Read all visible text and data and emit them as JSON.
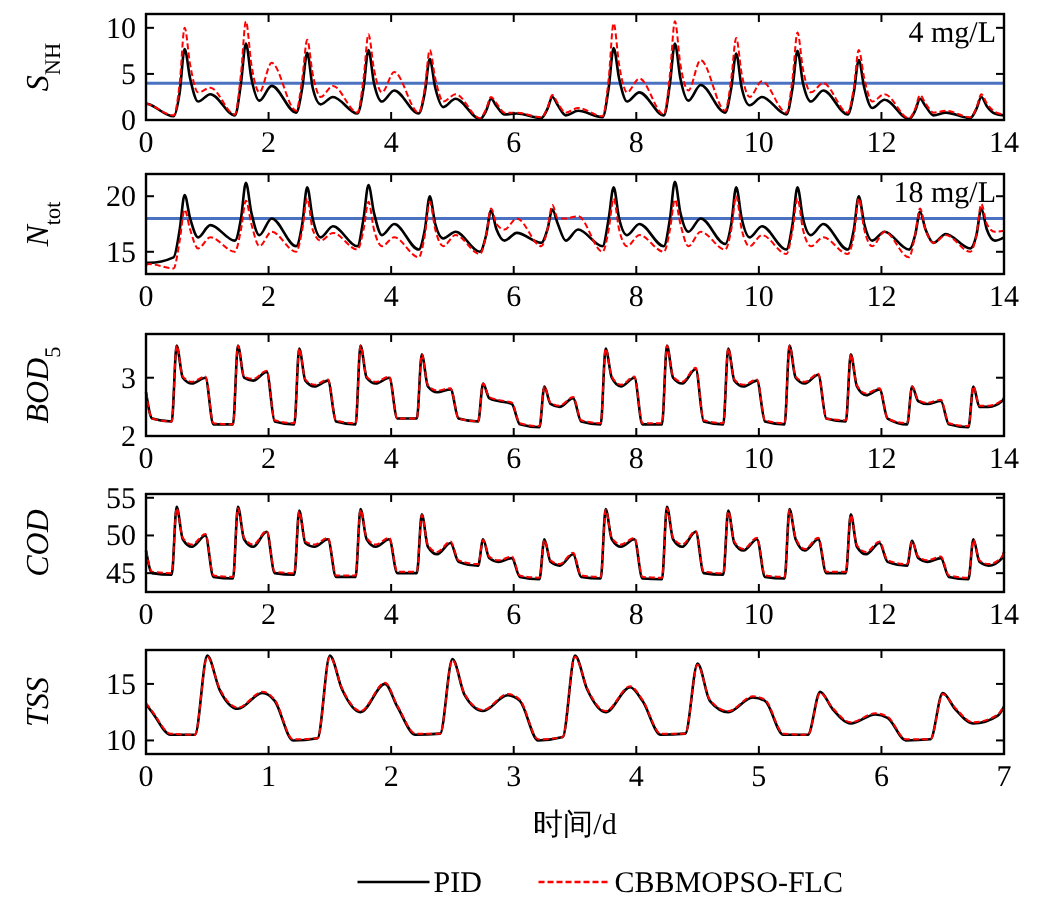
{
  "chart_data": [
    {
      "type": "line",
      "ylabel": "S$_{NH}$",
      "xlim": [
        0,
        14
      ],
      "xticks": [
        0,
        2,
        4,
        6,
        8,
        10,
        12,
        14
      ],
      "ylim": [
        0,
        11.5
      ],
      "yticks": [
        0,
        5,
        10
      ],
      "grid": false,
      "legend": false,
      "marker": "none",
      "x": [
        0,
        0.05,
        0.45,
        0.55,
        0.63,
        0.72,
        0.85,
        1.05,
        1.45,
        1.55,
        1.63,
        1.72,
        1.85,
        2.05,
        2.45,
        2.55,
        2.63,
        2.72,
        2.85,
        3.05,
        3.45,
        3.55,
        3.63,
        3.72,
        3.85,
        4.05,
        4.45,
        4.55,
        4.63,
        4.72,
        4.85,
        5.05,
        5.45,
        5.55,
        5.63,
        5.72,
        5.85,
        6.05,
        6.45,
        6.55,
        6.63,
        6.72,
        6.85,
        7.05,
        7.45,
        7.55,
        7.63,
        7.72,
        7.85,
        8.05,
        8.45,
        8.55,
        8.63,
        8.72,
        8.85,
        9.05,
        9.45,
        9.55,
        9.63,
        9.72,
        9.85,
        10.05,
        10.45,
        10.55,
        10.63,
        10.72,
        10.85,
        11.05,
        11.45,
        11.55,
        11.63,
        11.72,
        11.85,
        12.05,
        12.45,
        12.55,
        12.63,
        12.72,
        12.85,
        13.05,
        13.45,
        13.55,
        13.63,
        13.72,
        13.85,
        14
      ],
      "ref_lines": [
        {
          "axis": "y",
          "value": 4,
          "label": "4 mg/L",
          "color": "#4a72c0"
        }
      ],
      "series": [
        {
          "color": "#000000",
          "line_style": "solid",
          "values": [
            1.8,
            1.7,
            0.4,
            3,
            7.7,
            4.5,
            2.0,
            2.8,
            0.5,
            4,
            8.3,
            4.5,
            2.1,
            3.7,
            0.8,
            3.5,
            7.3,
            3.5,
            1.7,
            2.5,
            0.7,
            3.5,
            7.6,
            4,
            2.0,
            3.2,
            0.7,
            3,
            6.6,
            3.5,
            1.4,
            2.3,
            0.1,
            1.0,
            2.3,
            1.5,
            0.6,
            0.7,
            0.2,
            1.2,
            2.5,
            1.6,
            0.5,
            1.0,
            0.3,
            3.5,
            7.8,
            4.5,
            2.0,
            3.0,
            0.5,
            4,
            8.3,
            4.5,
            2.1,
            3.8,
            0.8,
            3.5,
            7.2,
            3.5,
            1.6,
            2.5,
            0.6,
            3.5,
            7.5,
            4,
            2.0,
            3.2,
            0.6,
            3,
            6.5,
            3.5,
            1.3,
            2.2,
            0.1,
            1.0,
            2.3,
            1.5,
            0.5,
            0.8,
            0.2,
            1.2,
            2.5,
            1.5,
            0.7,
            0.5
          ]
        },
        {
          "color": "#ff0000",
          "line_style": "dashed",
          "values": [
            1.8,
            1.7,
            0.5,
            4,
            10.0,
            6,
            3.0,
            3.5,
            0.6,
            5,
            10.7,
            6,
            3.0,
            6.2,
            1.0,
            4.5,
            8.7,
            5,
            2.5,
            3.7,
            0.8,
            4.5,
            9.3,
            5.5,
            3.0,
            5.2,
            0.8,
            3.5,
            7.6,
            4.5,
            2.0,
            2.8,
            0.2,
            1.2,
            2.5,
            1.8,
            0.8,
            0.8,
            0.3,
            1.3,
            2.7,
            1.8,
            0.8,
            1.3,
            0.4,
            4.5,
            10.5,
            6,
            3.0,
            4.5,
            0.6,
            5,
            10.7,
            6,
            3.2,
            6.5,
            1.0,
            4.5,
            8.9,
            5,
            2.5,
            4.2,
            0.8,
            4.5,
            9.5,
            5.5,
            3.0,
            4.0,
            0.8,
            3.5,
            7.6,
            4.5,
            2.0,
            2.8,
            0.2,
            1.2,
            2.7,
            1.8,
            0.8,
            1.0,
            0.3,
            1.3,
            2.8,
            1.8,
            0.9,
            0.6
          ]
        }
      ]
    },
    {
      "type": "line",
      "ylabel": "N$_{tot}$",
      "xlim": [
        0,
        14
      ],
      "xticks": [
        0,
        2,
        4,
        6,
        8,
        10,
        12,
        14
      ],
      "ylim": [
        13,
        22
      ],
      "yticks": [
        15,
        20
      ],
      "grid": false,
      "legend": false,
      "marker": "none",
      "x": [
        0,
        0.05,
        0.45,
        0.55,
        0.63,
        0.72,
        0.85,
        1.05,
        1.45,
        1.55,
        1.63,
        1.72,
        1.85,
        2.05,
        2.45,
        2.55,
        2.63,
        2.72,
        2.85,
        3.05,
        3.45,
        3.55,
        3.63,
        3.72,
        3.85,
        4.05,
        4.45,
        4.55,
        4.63,
        4.72,
        4.85,
        5.05,
        5.45,
        5.55,
        5.63,
        5.72,
        5.85,
        6.05,
        6.45,
        6.55,
        6.63,
        6.72,
        6.85,
        7.05,
        7.45,
        7.55,
        7.63,
        7.72,
        7.85,
        8.05,
        8.45,
        8.55,
        8.63,
        8.72,
        8.85,
        9.05,
        9.45,
        9.55,
        9.63,
        9.72,
        9.85,
        10.05,
        10.45,
        10.55,
        10.63,
        10.72,
        10.85,
        11.05,
        11.45,
        11.55,
        11.63,
        11.72,
        11.85,
        12.05,
        12.45,
        12.55,
        12.63,
        12.72,
        12.85,
        13.05,
        13.45,
        13.55,
        13.63,
        13.72,
        13.85,
        14
      ],
      "ref_lines": [
        {
          "axis": "y",
          "value": 18,
          "label": "18 mg/L",
          "color": "#4a72c0"
        }
      ],
      "series": [
        {
          "color": "#000000",
          "line_style": "solid",
          "values": [
            14,
            14.0,
            14.5,
            17,
            20.1,
            18,
            16.3,
            17.4,
            16.0,
            18,
            21.2,
            18.5,
            16.5,
            18.0,
            15.5,
            17.5,
            20.8,
            18,
            16.3,
            17.3,
            15.5,
            18,
            21.0,
            18.5,
            16.5,
            17.5,
            15.2,
            17,
            20.0,
            17.5,
            16.2,
            16.8,
            15.0,
            16.5,
            18.7,
            17,
            16.0,
            16.7,
            15.8,
            17,
            18.8,
            17.5,
            16.0,
            17.0,
            15.5,
            18,
            20.8,
            18,
            16.5,
            17.5,
            15.5,
            18,
            21.3,
            18.5,
            16.8,
            18.0,
            15.7,
            17.5,
            20.8,
            18,
            16.3,
            17.3,
            15.2,
            17.5,
            20.8,
            18,
            16.5,
            17.5,
            15.2,
            17,
            20.0,
            17.5,
            16.0,
            16.8,
            15.2,
            16.5,
            18.6,
            17,
            15.8,
            16.6,
            15.3,
            16.5,
            18.9,
            17,
            16.0,
            16.3
          ]
        },
        {
          "color": "#ff0000",
          "line_style": "dashed",
          "values": [
            13.8,
            13.9,
            13.5,
            16,
            18.8,
            17,
            15.3,
            16.3,
            15.0,
            17,
            19.6,
            17.5,
            15.5,
            16.8,
            15.0,
            17,
            19.8,
            17,
            16.0,
            16.7,
            15.2,
            17,
            19.5,
            17,
            15.5,
            16.3,
            14.5,
            16.5,
            19.5,
            17,
            15.5,
            16.5,
            14.8,
            16.5,
            18.9,
            17.5,
            17.0,
            18.0,
            15.5,
            17,
            19.2,
            18,
            18.0,
            18.2,
            15.0,
            17,
            19.8,
            17,
            15.5,
            16.5,
            15.0,
            17,
            19.7,
            17.5,
            15.5,
            16.8,
            15.2,
            17,
            20.0,
            17,
            15.5,
            16.5,
            14.8,
            17,
            19.8,
            17,
            15.5,
            16.3,
            14.8,
            16.5,
            19.8,
            17,
            15.5,
            16.8,
            14.5,
            16.5,
            18.9,
            17,
            15.8,
            16.5,
            15.0,
            16.5,
            19.3,
            17.5,
            16.8,
            16.9
          ]
        }
      ]
    },
    {
      "type": "line",
      "ylabel": "BOD$_{5}$",
      "xlim": [
        0,
        14
      ],
      "xticks": [
        0,
        2,
        4,
        6,
        8,
        10,
        12,
        14
      ],
      "ylim": [
        2,
        3.75
      ],
      "yticks": [
        2,
        3
      ],
      "grid": false,
      "legend": false,
      "marker": "none",
      "x": [
        0,
        0.1,
        0.42,
        0.5,
        0.6,
        0.75,
        0.97,
        1.1,
        1.42,
        1.5,
        1.6,
        1.75,
        1.97,
        2.1,
        2.42,
        2.5,
        2.6,
        2.75,
        2.97,
        3.1,
        3.42,
        3.5,
        3.6,
        3.75,
        3.97,
        4.1,
        4.42,
        4.5,
        4.6,
        4.75,
        4.97,
        5.1,
        5.42,
        5.5,
        5.6,
        5.75,
        5.97,
        6.1,
        6.42,
        6.5,
        6.6,
        6.75,
        6.97,
        7.1,
        7.42,
        7.5,
        7.6,
        7.75,
        7.97,
        8.1,
        8.42,
        8.5,
        8.6,
        8.75,
        8.97,
        9.1,
        9.42,
        9.5,
        9.6,
        9.75,
        9.97,
        10.1,
        10.42,
        10.5,
        10.6,
        10.75,
        10.97,
        11.1,
        11.42,
        11.5,
        11.6,
        11.75,
        11.97,
        12.1,
        12.42,
        12.5,
        12.6,
        12.75,
        12.97,
        13.1,
        13.42,
        13.5,
        13.6,
        13.75,
        13.97,
        14
      ],
      "series": [
        {
          "color": "#000000",
          "line_style": "solid",
          "values": [
            2.75,
            2.3,
            2.25,
            3.55,
            3.0,
            2.9,
            3.0,
            2.2,
            2.2,
            3.55,
            3.0,
            2.95,
            3.1,
            2.25,
            2.2,
            3.5,
            2.95,
            2.85,
            2.95,
            2.25,
            2.2,
            3.55,
            3.0,
            2.9,
            3.0,
            2.3,
            2.3,
            3.4,
            2.85,
            2.75,
            2.8,
            2.3,
            2.25,
            2.9,
            2.65,
            2.6,
            2.55,
            2.2,
            2.15,
            2.85,
            2.55,
            2.5,
            2.65,
            2.25,
            2.2,
            3.5,
            3.0,
            2.85,
            3.0,
            2.2,
            2.2,
            3.55,
            3.0,
            2.9,
            3.15,
            2.25,
            2.2,
            3.5,
            2.95,
            2.85,
            2.95,
            2.25,
            2.2,
            3.55,
            3.0,
            2.9,
            3.05,
            2.3,
            2.25,
            3.4,
            2.85,
            2.7,
            2.8,
            2.3,
            2.2,
            2.85,
            2.6,
            2.55,
            2.6,
            2.2,
            2.15,
            2.85,
            2.5,
            2.5,
            2.6,
            2.65
          ]
        },
        {
          "color": "#ff0000",
          "line_style": "dashed",
          "values": [
            2.75,
            2.3,
            2.25,
            3.55,
            3.02,
            2.93,
            3.02,
            2.22,
            2.2,
            3.55,
            3.02,
            2.98,
            3.12,
            2.27,
            2.22,
            3.5,
            2.97,
            2.88,
            2.97,
            2.27,
            2.22,
            3.55,
            3.02,
            2.93,
            3.02,
            2.3,
            2.3,
            3.4,
            2.87,
            2.78,
            2.82,
            2.3,
            2.25,
            2.9,
            2.67,
            2.62,
            2.57,
            2.22,
            2.17,
            2.85,
            2.57,
            2.52,
            2.67,
            2.27,
            2.22,
            3.5,
            3.02,
            2.88,
            3.02,
            2.22,
            2.22,
            3.55,
            3.02,
            2.93,
            3.17,
            2.27,
            2.22,
            3.5,
            2.97,
            2.88,
            2.97,
            2.27,
            2.22,
            3.55,
            3.02,
            2.93,
            3.07,
            2.3,
            2.27,
            3.4,
            2.87,
            2.73,
            2.82,
            2.3,
            2.22,
            2.85,
            2.62,
            2.57,
            2.62,
            2.22,
            2.17,
            2.85,
            2.52,
            2.52,
            2.62,
            2.65
          ]
        }
      ]
    },
    {
      "type": "line",
      "ylabel": "COD",
      "xlim": [
        0,
        14
      ],
      "xticks": [
        0,
        2,
        4,
        6,
        8,
        10,
        12,
        14
      ],
      "ylim": [
        42.5,
        55.5
      ],
      "yticks": [
        45,
        50,
        55
      ],
      "grid": false,
      "legend": false,
      "marker": "none",
      "x": [
        0,
        0.1,
        0.42,
        0.5,
        0.6,
        0.75,
        0.97,
        1.1,
        1.42,
        1.5,
        1.6,
        1.75,
        1.97,
        2.1,
        2.42,
        2.5,
        2.6,
        2.75,
        2.97,
        3.1,
        3.42,
        3.5,
        3.6,
        3.75,
        3.97,
        4.1,
        4.42,
        4.5,
        4.6,
        4.75,
        4.97,
        5.1,
        5.42,
        5.5,
        5.6,
        5.75,
        5.97,
        6.1,
        6.42,
        6.5,
        6.6,
        6.75,
        6.97,
        7.1,
        7.42,
        7.5,
        7.6,
        7.75,
        7.97,
        8.1,
        8.42,
        8.5,
        8.6,
        8.75,
        8.97,
        9.1,
        9.42,
        9.5,
        9.6,
        9.75,
        9.97,
        10.1,
        10.42,
        10.5,
        10.6,
        10.75,
        10.97,
        11.1,
        11.42,
        11.5,
        11.6,
        11.75,
        11.97,
        12.1,
        12.42,
        12.5,
        12.6,
        12.75,
        12.97,
        13.1,
        13.42,
        13.5,
        13.6,
        13.75,
        13.97,
        14
      ],
      "series": [
        {
          "color": "#000000",
          "line_style": "solid",
          "values": [
            48,
            45,
            44.8,
            53.8,
            49.5,
            48.5,
            50,
            44.5,
            44.3,
            53.8,
            49.5,
            48.5,
            50.5,
            45,
            44.8,
            53.3,
            49,
            48.5,
            49.5,
            44.5,
            44.5,
            53.5,
            49.5,
            48.5,
            49.5,
            45,
            45,
            52.8,
            48.5,
            47.5,
            49,
            46.5,
            46,
            49.5,
            47,
            46.5,
            47,
            44.5,
            44.2,
            49.5,
            46.5,
            46,
            47.5,
            44.5,
            44.3,
            53.5,
            49.5,
            48.5,
            49.5,
            44.3,
            44.2,
            53.8,
            49.5,
            48.5,
            50.5,
            45,
            44.8,
            53.3,
            49,
            48,
            49.5,
            44.5,
            44.3,
            53.5,
            49.5,
            48,
            49.5,
            45,
            45,
            52.8,
            48.5,
            47.5,
            49,
            46.5,
            46,
            49.3,
            47,
            46.5,
            47,
            44.5,
            44.2,
            49.5,
            46.5,
            46,
            47,
            47.8
          ]
        },
        {
          "color": "#ff0000",
          "line_style": "dashed",
          "values": [
            48,
            45.2,
            45,
            53.6,
            49.7,
            48.8,
            50.2,
            44.7,
            44.5,
            53.6,
            49.7,
            48.8,
            50.6,
            45.2,
            45,
            53.2,
            49.2,
            48.8,
            49.7,
            44.7,
            44.7,
            53.4,
            49.7,
            48.8,
            49.7,
            45.2,
            45.2,
            52.7,
            48.7,
            47.8,
            49.2,
            46.7,
            46.2,
            49.4,
            47.2,
            46.7,
            47.2,
            44.7,
            44.4,
            49.4,
            46.7,
            46.2,
            47.7,
            44.7,
            44.5,
            53.4,
            49.7,
            48.8,
            49.7,
            44.5,
            44.4,
            53.6,
            49.7,
            48.8,
            50.6,
            45.2,
            45,
            53.2,
            49.2,
            48.2,
            49.7,
            44.7,
            44.5,
            53.4,
            49.7,
            48.2,
            49.7,
            45.2,
            45.2,
            52.7,
            48.7,
            47.8,
            49.2,
            46.7,
            46.2,
            49.2,
            47.2,
            46.7,
            47.2,
            44.7,
            44.4,
            49.4,
            46.7,
            46.2,
            47.2,
            47.9
          ]
        }
      ]
    },
    {
      "type": "line",
      "ylabel": "TSS",
      "xlabel": "时间/d",
      "xlim": [
        0,
        7
      ],
      "xticks": [
        0,
        1,
        2,
        3,
        4,
        5,
        6,
        7
      ],
      "ylim": [
        8.8,
        18
      ],
      "yticks": [
        10,
        15
      ],
      "grid": false,
      "legend": "bottom",
      "marker": "none",
      "x": [
        0,
        0.05,
        0.2,
        0.4,
        0.5,
        0.6,
        0.75,
        0.95,
        1.05,
        1.2,
        1.4,
        1.5,
        1.6,
        1.75,
        1.95,
        2.05,
        2.2,
        2.4,
        2.5,
        2.6,
        2.75,
        2.95,
        3.05,
        3.2,
        3.4,
        3.5,
        3.6,
        3.75,
        3.95,
        4.05,
        4.2,
        4.4,
        4.5,
        4.6,
        4.75,
        4.95,
        5.05,
        5.2,
        5.4,
        5.5,
        5.6,
        5.75,
        5.95,
        6.05,
        6.2,
        6.4,
        6.5,
        6.6,
        6.75,
        6.95,
        7
      ],
      "series": [
        {
          "name": "PID",
          "color": "#000000",
          "line_style": "solid",
          "values": [
            13.2,
            12.5,
            10.5,
            10.5,
            17.5,
            14.5,
            12.8,
            14.2,
            13.5,
            10.0,
            10.2,
            17.5,
            14.5,
            12.5,
            15.0,
            13.0,
            10.5,
            10.6,
            17.2,
            14,
            12.6,
            14.0,
            13.5,
            10.0,
            10.3,
            17.5,
            14.5,
            12.5,
            14.7,
            13.5,
            10.5,
            10.6,
            16.8,
            13.5,
            12.5,
            13.8,
            13.5,
            10.5,
            10.5,
            14.3,
            12.8,
            11.5,
            12.3,
            12.0,
            10.0,
            10.1,
            14.2,
            12.8,
            11.5,
            12.2,
            13.0
          ]
        },
        {
          "name": "CBBMOPSO-FLC",
          "color": "#ff0000",
          "line_style": "dashed",
          "values": [
            13.3,
            12.6,
            10.6,
            10.5,
            17.4,
            14.6,
            12.9,
            14.3,
            13.6,
            10.1,
            10.2,
            17.4,
            14.6,
            12.6,
            15.1,
            13.1,
            10.6,
            10.6,
            17.1,
            14.1,
            12.7,
            14.1,
            13.6,
            10.1,
            10.3,
            17.4,
            14.6,
            12.6,
            14.8,
            13.6,
            10.6,
            10.6,
            16.7,
            13.6,
            12.6,
            13.9,
            13.6,
            10.6,
            10.5,
            14.2,
            12.9,
            11.6,
            12.4,
            12.1,
            10.1,
            10.1,
            14.1,
            12.9,
            11.6,
            12.3,
            13.1
          ]
        }
      ]
    }
  ]
}
